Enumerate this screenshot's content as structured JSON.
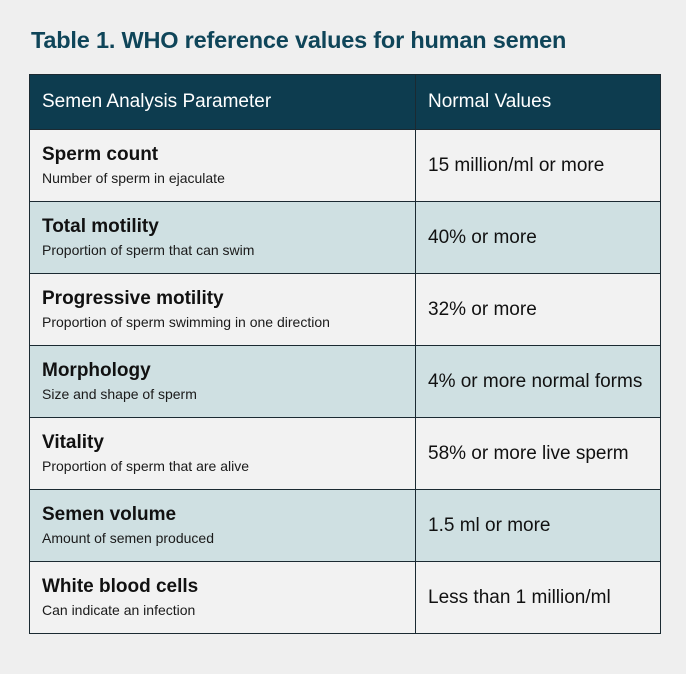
{
  "caption": "Table 1. WHO reference values for human semen",
  "header": {
    "col1": "Semen Analysis Parameter",
    "col2": "Normal Values"
  },
  "rows": [
    {
      "name": "Sperm count",
      "desc": "Number of sperm in ejaculate",
      "value": "15 million/ml or more"
    },
    {
      "name": "Total motility",
      "desc": "Proportion of sperm that can swim",
      "value": "40% or more"
    },
    {
      "name": "Progressive motility",
      "desc": "Proportion of sperm swimming in one direction",
      "value": "32% or more"
    },
    {
      "name": "Morphology",
      "desc": "Size and shape of sperm",
      "value": "4% or more normal forms"
    },
    {
      "name": "Vitality",
      "desc": "Proportion of sperm that are alive",
      "value": "58% or more live sperm"
    },
    {
      "name": "Semen volume",
      "desc": "Amount of semen produced",
      "value": "1.5 ml or more"
    },
    {
      "name": "White blood cells",
      "desc": "Can indicate an infection",
      "value": "Less than 1 million/ml"
    }
  ],
  "colors": {
    "caption": "#0f4559",
    "header_bg": "#0d3c4f",
    "row_light": "#f2f2f2",
    "row_tinted": "#cfe0e2",
    "border": "#1b2a32"
  }
}
